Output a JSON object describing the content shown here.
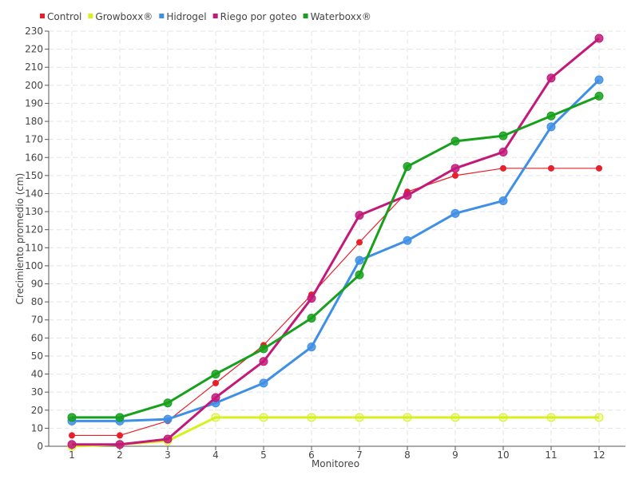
{
  "chart_data": {
    "type": "line",
    "title": "",
    "xlabel": "Monitoreo",
    "ylabel": "Crecimiento promedio (cm)",
    "categories": [
      "1",
      "2",
      "3",
      "4",
      "5",
      "6",
      "7",
      "8",
      "9",
      "10",
      "11",
      "12"
    ],
    "ylim": [
      0,
      230
    ],
    "yticks": [
      0,
      10,
      20,
      30,
      40,
      50,
      60,
      70,
      80,
      90,
      100,
      110,
      120,
      130,
      140,
      150,
      160,
      170,
      180,
      190,
      200,
      210,
      220,
      230
    ],
    "grid": true,
    "legend_position": "top-left",
    "series": [
      {
        "name": "Control",
        "color": "#e8202a",
        "values": [
          6,
          6,
          14,
          35,
          56,
          84,
          113,
          141,
          150,
          154,
          154,
          154
        ]
      },
      {
        "name": "Growboxx®",
        "color": "#d7f01e",
        "values": [
          0,
          1,
          3,
          16,
          16,
          16,
          16,
          16,
          16,
          16,
          16,
          16
        ]
      },
      {
        "name": "Hidrogel",
        "color": "#3f8fe6",
        "values": [
          14,
          14,
          15,
          24,
          35,
          55,
          103,
          114,
          129,
          136,
          177,
          203
        ]
      },
      {
        "name": "Riego por goteo",
        "color": "#c3197a",
        "values": [
          1,
          1,
          4,
          27,
          47,
          82,
          128,
          139,
          154,
          163,
          204,
          226
        ]
      },
      {
        "name": "Waterboxx®",
        "color": "#16a01b",
        "values": [
          16,
          16,
          24,
          40,
          54,
          71,
          95,
          155,
          169,
          172,
          183,
          194
        ]
      }
    ]
  }
}
